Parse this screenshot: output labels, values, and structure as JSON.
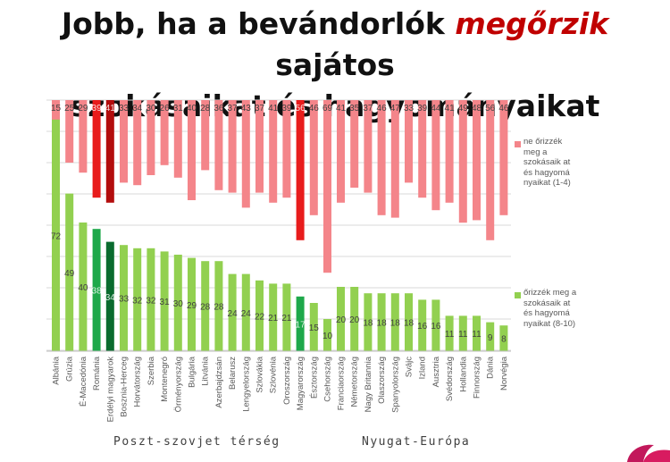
{
  "title": {
    "part1": "Jobb, ha a bevándorlók ",
    "highlight": "megőrzik",
    "part2": " sajátos",
    "line2": "szokásaikat és hagyományaikat"
  },
  "legend": {
    "top": "ne őrizzék meg a szokásaik at és hagyomá nyaikat (1-4)",
    "bottom": "őrizzék meg a szokásaik at és hagyomá nyaikat (8-10)"
  },
  "regions": {
    "left": "Poszt-szovjet térség",
    "right": "Nyugat-Európa"
  },
  "colors": {
    "neg_default": "#f4858a",
    "neg_highlight": "#e81c1c",
    "neg_dark": "#b30d0d",
    "pos_default": "#92d050",
    "pos_highlight": "#1ea84a",
    "pos_dark": "#0a6b2e",
    "grid": "#d9d9d9"
  },
  "chart_data": {
    "type": "bar",
    "categories": [
      "Albánia",
      "Grúzia",
      "É-Macedónia",
      "Románia",
      "Erdélyi magyarok",
      "Bosznia-Herceg",
      "Horvátország",
      "Szerbia",
      "Montenegró",
      "Örményország",
      "Bulgária",
      "Litvánia",
      "Azerbajdzsán",
      "Belarusz",
      "Lengyelország",
      "Szlovákia",
      "Szlovénia",
      "Oroszország",
      "Magyarország",
      "Észtország",
      "Csehország",
      "Franciaország",
      "Németország",
      "Nagy Britannia",
      "Olaszország",
      "Spanyolország",
      "Svájc",
      "Izland",
      "Ausztria",
      "Svédország",
      "Hollandia",
      "Finnország",
      "Dánia",
      "Norvégia"
    ],
    "groups": [
      {
        "name": "Poszt-szovjet térség",
        "start": 0,
        "end": 20
      },
      {
        "name": "Nyugat-Európa",
        "start": 21,
        "end": 33
      }
    ],
    "series": [
      {
        "name": "ne őrizzék meg a szokásaik at és hagyomá nyaikat (1-4)",
        "values": [
          15,
          25,
          29,
          39,
          41,
          33,
          34,
          30,
          26,
          31,
          40,
          28,
          36,
          37,
          43,
          37,
          41,
          39,
          56,
          46,
          69,
          41,
          35,
          37,
          46,
          47,
          33,
          39,
          44,
          41,
          49,
          48,
          56,
          46
        ]
      },
      {
        "name": "őrizzék meg a szokásaik at és hagyomá nyaikat (8-10)",
        "values": [
          72,
          49,
          40,
          38,
          34,
          33,
          32,
          32,
          31,
          30,
          29,
          28,
          28,
          24,
          24,
          22,
          21,
          21,
          17,
          15,
          10,
          20,
          20,
          18,
          18,
          18,
          18,
          16,
          16,
          11,
          11,
          11,
          9,
          8
        ]
      }
    ],
    "highlight": {
      "Románia": "highlight",
      "Erdélyi magyarok": "dark",
      "Magyarország": "highlight"
    },
    "grid": true,
    "legend_position": "right"
  }
}
